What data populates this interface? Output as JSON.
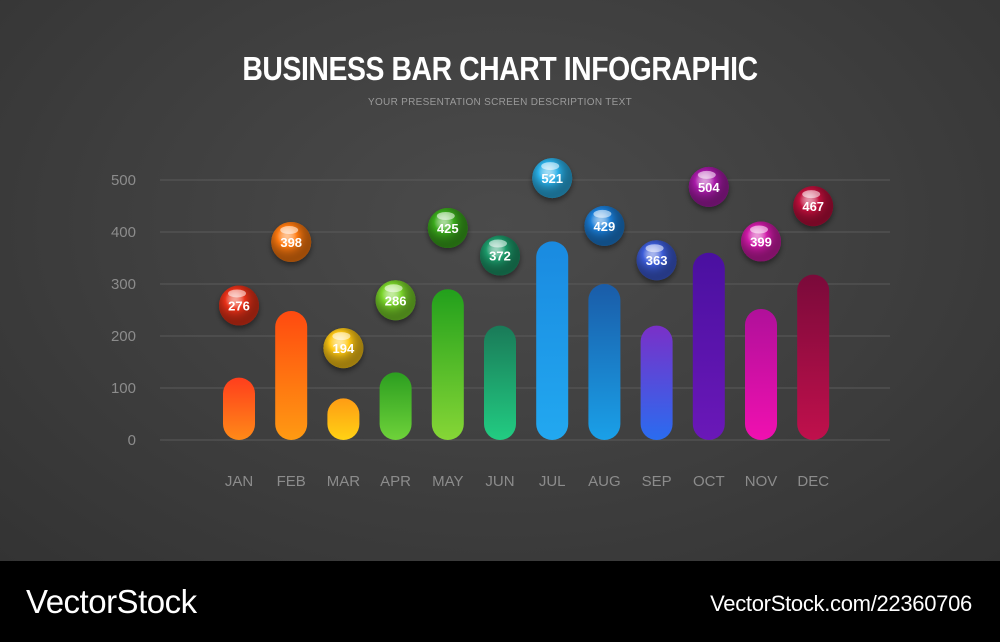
{
  "header": {
    "title": "BUSINESS BAR CHART INFOGRAPHIC",
    "subtitle": "YOUR PRESENTATION SCREEN DESCRIPTION TEXT"
  },
  "footer": {
    "brand": "VectorStock",
    "credit": "VectorStock.com/22360706"
  },
  "chart_data": {
    "type": "bar",
    "title": "BUSINESS BAR CHART INFOGRAPHIC",
    "subtitle": "YOUR PRESENTATION SCREEN DESCRIPTION TEXT",
    "categories": [
      "JAN",
      "FEB",
      "MAR",
      "APR",
      "MAY",
      "JUN",
      "JUL",
      "AUG",
      "SEP",
      "OCT",
      "NOV",
      "DEC"
    ],
    "values": [
      120,
      248,
      80,
      130,
      290,
      220,
      382,
      300,
      220,
      360,
      252,
      318
    ],
    "labels": [
      276,
      398,
      194,
      286,
      425,
      372,
      521,
      429,
      363,
      504,
      399,
      467
    ],
    "ylim": [
      0,
      500
    ],
    "yticks": [
      0,
      100,
      200,
      300,
      400,
      500
    ],
    "grid": true,
    "xlabel": "",
    "ylabel": "",
    "colors": [
      [
        "#ff3e1c",
        "#ff8a18"
      ],
      [
        "#ff4a10",
        "#ff9a12"
      ],
      [
        "#ff9c14",
        "#ffd214"
      ],
      [
        "#2c9e20",
        "#6ed23a"
      ],
      [
        "#22a01c",
        "#86d636"
      ],
      [
        "#1a7a58",
        "#22cc82"
      ],
      [
        "#1a8ae0",
        "#22a8f0"
      ],
      [
        "#1a5ca8",
        "#1aa0e8"
      ],
      [
        "#7a30c8",
        "#2a6cf0"
      ],
      [
        "#4a10a0",
        "#6a18b8"
      ],
      [
        "#b0109a",
        "#f010b0"
      ],
      [
        "#7a0a3a",
        "#c0104c"
      ]
    ],
    "ball_colors": [
      "#e83018",
      "#ff7a10",
      "#ffc814",
      "#7ad42a",
      "#3aaa1c",
      "#1c9a6a",
      "#2ab0e8",
      "#1a7ed8",
      "#3c5cd8",
      "#a81aa8",
      "#d01aa8",
      "#c0103c"
    ]
  }
}
